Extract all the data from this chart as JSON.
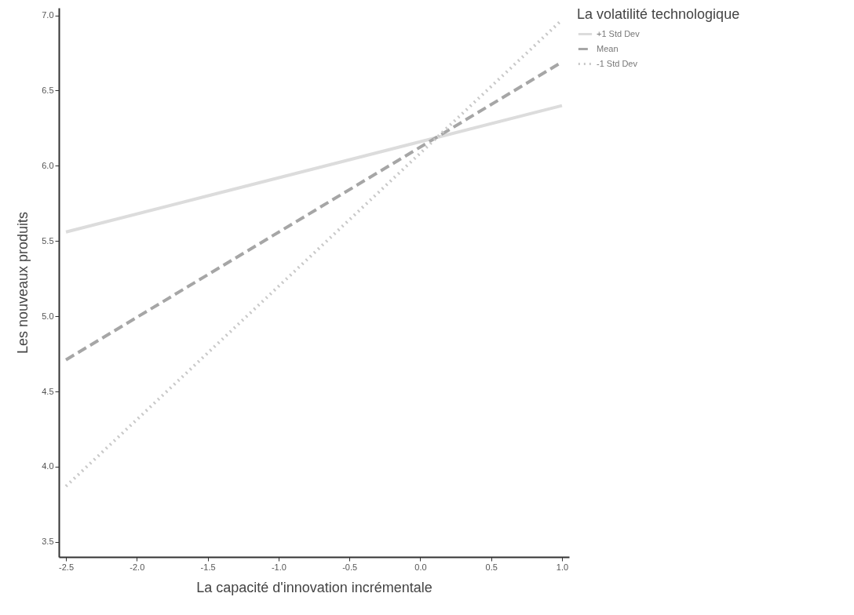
{
  "chart_data": {
    "type": "line",
    "xlabel": "La capacité d'innovation incrémentale",
    "ylabel": "Les nouveaux produits",
    "legend_title": "La volatilité technologique",
    "legend": "top right",
    "grid": false,
    "xlim": [
      -2.55,
      1.05
    ],
    "xticks": [
      {
        "value": -2.5,
        "label": "-2.5"
      },
      {
        "value": -2,
        "label": "-2.0"
      },
      {
        "value": -1.5,
        "label": "-1.5"
      },
      {
        "value": -1,
        "label": "-1.0"
      },
      {
        "value": -0.5,
        "label": "-0.5"
      },
      {
        "value": 0,
        "label": "0.0"
      },
      {
        "value": 0.5,
        "label": "0.5"
      },
      {
        "value": 1,
        "label": "1.0"
      }
    ],
    "ylim": [
      3.4,
      7.05
    ],
    "yticks": [
      {
        "value": 3.5,
        "label": "3.5"
      },
      {
        "value": 4,
        "label": "4.0"
      },
      {
        "value": 4.5,
        "label": "4.5"
      },
      {
        "value": 5,
        "label": "5.0"
      },
      {
        "value": 5.5,
        "label": "5.5"
      },
      {
        "value": 6,
        "label": "6.0"
      },
      {
        "value": 6.5,
        "label": "6.5"
      },
      {
        "value": 7,
        "label": "7.0"
      }
    ],
    "x": [
      -2.5,
      1.0
    ],
    "series": [
      {
        "name": "+1 Std Dev",
        "color": "#dcdcdc",
        "line_style": "solid",
        "values": [
          5.56,
          6.4
        ]
      },
      {
        "name": "Mean",
        "color": "#a6a6a6",
        "line_style": "dashed",
        "values": [
          4.71,
          6.69
        ]
      },
      {
        "name": "-1 Std Dev",
        "color": "#c8c8c8",
        "line_style": "dotted",
        "values": [
          3.87,
          6.97
        ]
      }
    ]
  }
}
